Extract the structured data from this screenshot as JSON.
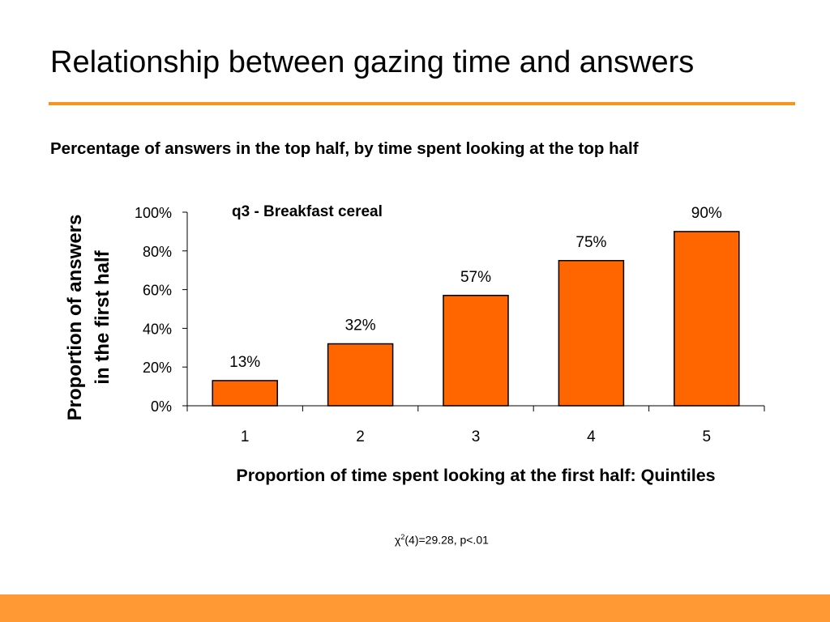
{
  "slide": {
    "title": "Relationship between gazing time and answers",
    "subtitle": "Percentage of answers in the top half, by time spent looking at the top half",
    "accent_color": "#F7941D",
    "footer_color": "#FF9933"
  },
  "stat": {
    "chi_symbol": "χ",
    "superscript": "2",
    "rest": "(4)=29.28, p<.01"
  },
  "chart_data": {
    "type": "bar",
    "title": "q3 - Breakfast cereal",
    "categories": [
      "1",
      "2",
      "3",
      "4",
      "5"
    ],
    "values": [
      13,
      32,
      57,
      75,
      90
    ],
    "value_labels": [
      "13%",
      "32%",
      "57%",
      "75%",
      "90%"
    ],
    "xlabel": "Proportion of time spent looking at the first half: Quintiles",
    "ylabel_lines": [
      "Proportion of answers",
      "in the first half"
    ],
    "ylim": [
      0,
      100
    ],
    "yticks": [
      0,
      20,
      40,
      60,
      80,
      100
    ],
    "ytick_labels": [
      "0%",
      "20%",
      "40%",
      "60%",
      "80%",
      "100%"
    ],
    "grid": false,
    "bar_color": "#FF6600"
  }
}
